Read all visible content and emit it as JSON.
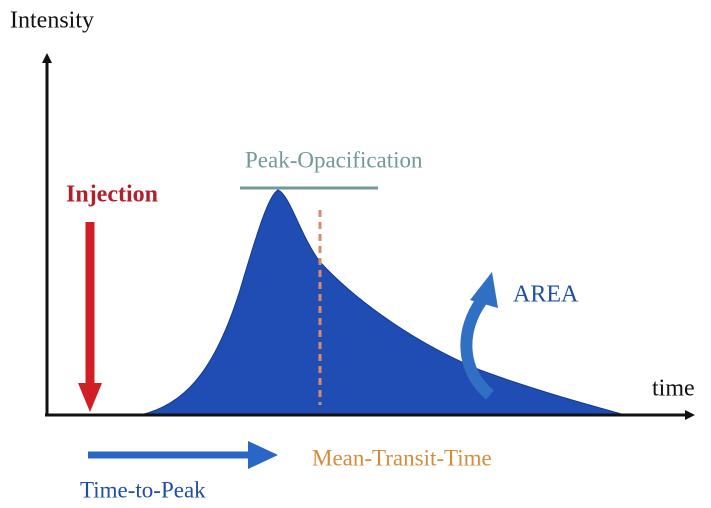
{
  "axes": {
    "y_label": "Intensity",
    "x_label": "time"
  },
  "labels": {
    "injection": "Injection",
    "peak": "Peak-Opacification",
    "area": "AREA",
    "mtt": "Mean-Transit-Time",
    "ttp": "Time-to-Peak"
  }
}
